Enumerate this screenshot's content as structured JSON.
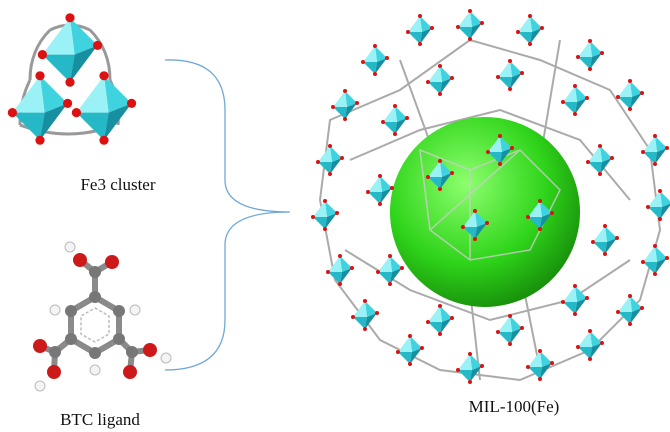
{
  "nodes": [
    {
      "label": "Fe3 cluster"
    },
    {
      "label": "BTC ligand"
    },
    {
      "label": "MIL-100(Fe)"
    }
  ]
}
